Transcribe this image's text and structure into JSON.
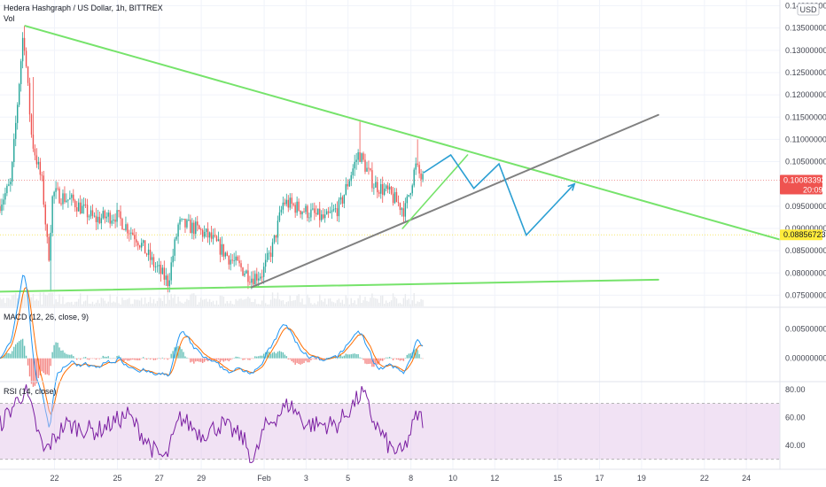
{
  "header": {
    "symbol_title": "Hedera Hashgraph / US Dollar, 1h, BITTREX",
    "volume_label": "Vol",
    "currency_badge": "USD"
  },
  "price_axis": {
    "ticks": [
      "0.14000000",
      "0.13500000",
      "0.13000000",
      "0.12500000",
      "0.12000000",
      "0.11500000",
      "0.11000000",
      "0.10500000",
      "0.09500000",
      "0.09000000",
      "0.08500000",
      "0.08000000",
      "0.07500000"
    ],
    "tick_values": [
      0.14,
      0.135,
      0.13,
      0.125,
      0.12,
      0.115,
      0.11,
      0.105,
      0.095,
      0.09,
      0.085,
      0.08,
      0.075
    ],
    "range": [
      0.0725,
      0.1413
    ],
    "current_price": "0.10083393",
    "countdown": "20:09",
    "current_value": 0.10083393,
    "reference_price": "0.08856723",
    "reference_value": 0.08856723,
    "current_color": "#ef5350",
    "reference_color": "#ffeb3b"
  },
  "time_axis": {
    "labels": [
      "22",
      "25",
      "27",
      "29",
      "Feb",
      "3",
      "5",
      "8",
      "10",
      "12",
      "15",
      "17",
      "19",
      "22",
      "24"
    ],
    "label_days": [
      22,
      25,
      27,
      29,
      32,
      34,
      36,
      39,
      41,
      43,
      46,
      48,
      50,
      53,
      55
    ],
    "day_range": [
      19.4,
      56.6
    ]
  },
  "chart_data": [
    {
      "type": "candlestick",
      "title": "Hedera Hashgraph / US Dollar, 1h, BITTREX",
      "unit": "USD",
      "x_unit": "day",
      "ylim": [
        0.0725,
        0.1413
      ],
      "up_color": "#26a69a",
      "down_color": "#ef5350",
      "anchors": [
        [
          19.4,
          0.095
        ],
        [
          20.0,
          0.1
        ],
        [
          20.6,
          0.1345
        ],
        [
          21.0,
          0.11
        ],
        [
          21.5,
          0.1
        ],
        [
          21.8,
          0.083
        ],
        [
          22.0,
          0.098
        ],
        [
          23.0,
          0.096
        ],
        [
          24.0,
          0.092
        ],
        [
          25.0,
          0.093
        ],
        [
          26.0,
          0.088
        ],
        [
          26.8,
          0.082
        ],
        [
          27.5,
          0.078
        ],
        [
          28.0,
          0.091
        ],
        [
          28.8,
          0.09
        ],
        [
          29.5,
          0.088
        ],
        [
          30.5,
          0.083
        ],
        [
          31.5,
          0.079
        ],
        [
          32.0,
          0.08
        ],
        [
          32.5,
          0.086
        ],
        [
          33.0,
          0.096
        ],
        [
          34.0,
          0.094
        ],
        [
          35.0,
          0.092
        ],
        [
          35.7,
          0.095
        ],
        [
          36.2,
          0.102
        ],
        [
          36.6,
          0.107
        ],
        [
          37.3,
          0.1
        ],
        [
          38.0,
          0.098
        ],
        [
          38.8,
          0.094
        ],
        [
          39.3,
          0.104
        ],
        [
          39.6,
          0.101
        ]
      ]
    },
    {
      "type": "bar",
      "title": "Vol",
      "x_unit": "day",
      "x_range": [
        19.4,
        39.6
      ]
    },
    {
      "type": "line",
      "title": "MACD (12, 26, close, 9)",
      "ylim": [
        -0.0038,
        0.0085
      ],
      "ticks": [
        "0.00500000",
        "0.00000000"
      ],
      "tick_values": [
        0.005,
        0.0
      ],
      "series": [
        {
          "name": "MACD",
          "color": "#2196f3"
        },
        {
          "name": "Signal",
          "color": "#ff6d00"
        },
        {
          "name": "Histogram",
          "color_up": "#26a69a",
          "color_down": "#ef5350"
        }
      ]
    },
    {
      "type": "line",
      "title": "RSI (14, close)",
      "ylim": [
        23.5,
        85
      ],
      "ticks": [
        "80.00",
        "60.00",
        "40.00"
      ],
      "tick_values": [
        80,
        60,
        40
      ],
      "band": [
        30,
        70
      ],
      "series": [
        {
          "name": "RSI",
          "color": "#7b1fa2"
        }
      ],
      "anchors": [
        [
          19.4,
          55
        ],
        [
          20.6,
          80
        ],
        [
          21.5,
          35
        ],
        [
          22.5,
          55
        ],
        [
          24.0,
          50
        ],
        [
          25.5,
          62
        ],
        [
          26.8,
          35
        ],
        [
          27.3,
          30
        ],
        [
          28.0,
          60
        ],
        [
          29.0,
          48
        ],
        [
          30.0,
          55
        ],
        [
          31.0,
          45
        ],
        [
          31.5,
          28
        ],
        [
          32.0,
          52
        ],
        [
          33.2,
          70
        ],
        [
          34.0,
          55
        ],
        [
          35.5,
          55
        ],
        [
          36.7,
          78
        ],
        [
          37.2,
          58
        ],
        [
          38.0,
          38
        ],
        [
          38.6,
          34
        ],
        [
          39.3,
          62
        ],
        [
          39.6,
          58
        ]
      ]
    }
  ],
  "drawings": {
    "descending_trendline": {
      "color": "#76e36b",
      "points": [
        [
          20.6,
          0.1355
        ],
        [
          56.6,
          0.0875
        ]
      ]
    },
    "support_line": {
      "color": "#76e36b",
      "points": [
        [
          19.4,
          0.0758
        ],
        [
          50.8,
          0.0785
        ]
      ]
    },
    "ascending_trendline": {
      "color": "#808080",
      "points": [
        [
          31.4,
          0.0768
        ],
        [
          50.8,
          0.1155
        ]
      ]
    },
    "short_rise_line": {
      "color": "#76e36b",
      "points": [
        [
          38.6,
          0.09
        ],
        [
          41.7,
          0.1065
        ]
      ]
    },
    "projection_path": {
      "color": "#2b9fd3",
      "points": [
        [
          39.6,
          0.1025
        ],
        [
          40.9,
          0.1065
        ],
        [
          42.0,
          0.099
        ],
        [
          43.2,
          0.1045
        ],
        [
          44.5,
          0.0885
        ],
        [
          46.8,
          0.1
        ]
      ]
    }
  }
}
